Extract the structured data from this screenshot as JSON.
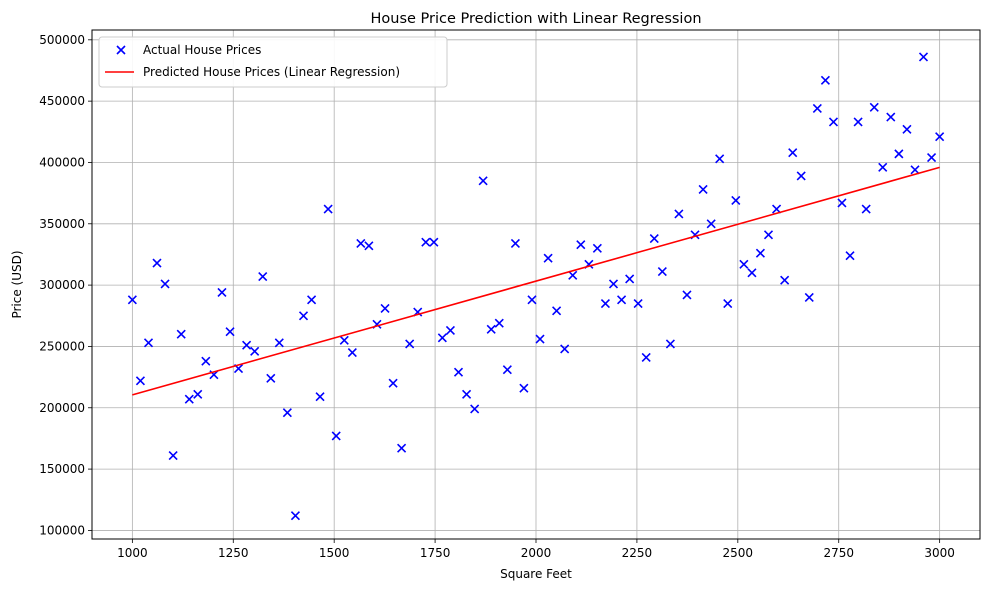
{
  "chart_data": {
    "type": "scatter",
    "title": "House Price Prediction with Linear Regression",
    "xlabel": "Square Feet",
    "ylabel": "Price (USD)",
    "xlim": [
      900,
      3100
    ],
    "ylim": [
      93000,
      508000
    ],
    "xticks": [
      1000,
      1250,
      1500,
      1750,
      2000,
      2250,
      2500,
      2750,
      3000
    ],
    "yticks": [
      100000,
      150000,
      200000,
      250000,
      300000,
      350000,
      400000,
      450000,
      500000
    ],
    "grid": true,
    "legend_position": "top-left",
    "colors": {
      "scatter": "#0000ff",
      "line": "#ff0000",
      "grid": "#b0b0b0"
    },
    "series": [
      {
        "name": "Actual House Prices",
        "kind": "scatter",
        "marker": "x",
        "points": [
          [
            1000,
            288000
          ],
          [
            1020,
            222000
          ],
          [
            1040,
            253000
          ],
          [
            1061,
            318000
          ],
          [
            1081,
            301000
          ],
          [
            1101,
            161000
          ],
          [
            1121,
            260000
          ],
          [
            1141,
            207000
          ],
          [
            1162,
            211000
          ],
          [
            1182,
            238000
          ],
          [
            1202,
            227000
          ],
          [
            1222,
            294000
          ],
          [
            1242,
            262000
          ],
          [
            1263,
            232000
          ],
          [
            1283,
            251000
          ],
          [
            1303,
            246000
          ],
          [
            1323,
            307000
          ],
          [
            1343,
            224000
          ],
          [
            1364,
            253000
          ],
          [
            1384,
            196000
          ],
          [
            1404,
            112000
          ],
          [
            1424,
            275000
          ],
          [
            1444,
            288000
          ],
          [
            1465,
            209000
          ],
          [
            1485,
            362000
          ],
          [
            1505,
            177000
          ],
          [
            1525,
            255000
          ],
          [
            1545,
            245000
          ],
          [
            1566,
            334000
          ],
          [
            1586,
            332000
          ],
          [
            1606,
            268000
          ],
          [
            1626,
            281000
          ],
          [
            1646,
            220000
          ],
          [
            1667,
            167000
          ],
          [
            1687,
            252000
          ],
          [
            1707,
            278000
          ],
          [
            1727,
            335000
          ],
          [
            1747,
            335000
          ],
          [
            1768,
            257000
          ],
          [
            1788,
            263000
          ],
          [
            1808,
            229000
          ],
          [
            1828,
            211000
          ],
          [
            1848,
            199000
          ],
          [
            1869,
            385000
          ],
          [
            1889,
            264000
          ],
          [
            1909,
            269000
          ],
          [
            1929,
            231000
          ],
          [
            1949,
            334000
          ],
          [
            1970,
            216000
          ],
          [
            1990,
            288000
          ],
          [
            2010,
            256000
          ],
          [
            2030,
            322000
          ],
          [
            2051,
            279000
          ],
          [
            2071,
            248000
          ],
          [
            2091,
            308000
          ],
          [
            2111,
            333000
          ],
          [
            2131,
            317000
          ],
          [
            2152,
            330000
          ],
          [
            2172,
            285000
          ],
          [
            2192,
            301000
          ],
          [
            2212,
            288000
          ],
          [
            2232,
            305000
          ],
          [
            2253,
            285000
          ],
          [
            2273,
            241000
          ],
          [
            2293,
            338000
          ],
          [
            2313,
            311000
          ],
          [
            2333,
            252000
          ],
          [
            2354,
            358000
          ],
          [
            2374,
            292000
          ],
          [
            2394,
            341000
          ],
          [
            2414,
            378000
          ],
          [
            2434,
            350000
          ],
          [
            2455,
            403000
          ],
          [
            2475,
            285000
          ],
          [
            2495,
            369000
          ],
          [
            2515,
            317000
          ],
          [
            2535,
            310000
          ],
          [
            2556,
            326000
          ],
          [
            2576,
            341000
          ],
          [
            2596,
            362000
          ],
          [
            2616,
            304000
          ],
          [
            2636,
            408000
          ],
          [
            2657,
            389000
          ],
          [
            2677,
            290000
          ],
          [
            2697,
            444000
          ],
          [
            2717,
            467000
          ],
          [
            2737,
            433000
          ],
          [
            2758,
            367000
          ],
          [
            2778,
            324000
          ],
          [
            2798,
            433000
          ],
          [
            2818,
            362000
          ],
          [
            2838,
            445000
          ],
          [
            2859,
            396000
          ],
          [
            2879,
            437000
          ],
          [
            2899,
            407000
          ],
          [
            2919,
            427000
          ],
          [
            2939,
            394000
          ],
          [
            2960,
            486000
          ],
          [
            2980,
            404000
          ],
          [
            3000,
            421000
          ]
        ]
      },
      {
        "name": "Predicted House Prices (Linear Regression)",
        "kind": "line",
        "points": [
          [
            1000,
            210500
          ],
          [
            3000,
            396000
          ]
        ]
      }
    ]
  }
}
